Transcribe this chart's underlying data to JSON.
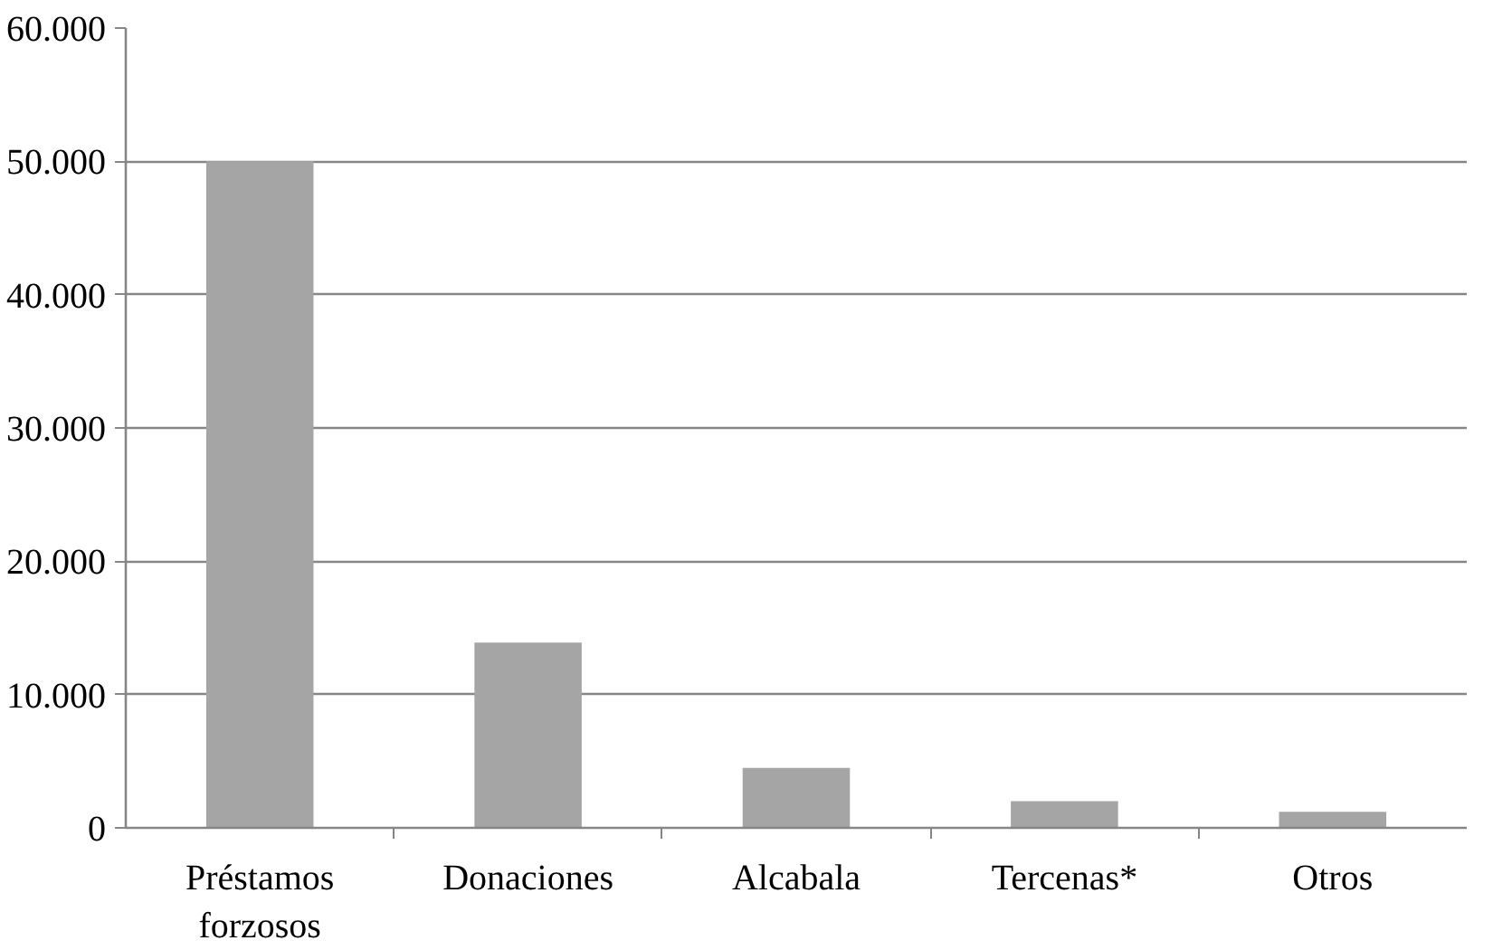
{
  "chart_data": {
    "type": "bar",
    "categories": [
      "Préstamos forzosos",
      "Donaciones",
      "Alcabala",
      "Tercenas*",
      "Otros"
    ],
    "values": [
      50000,
      13900,
      4500,
      2000,
      1200
    ],
    "color": "#a5a5a5",
    "ylim": [
      0,
      60000
    ],
    "yticks": [
      {
        "value": 0,
        "label": "0"
      },
      {
        "value": 10000,
        "label": "10.000"
      },
      {
        "value": 20000,
        "label": "20.000"
      },
      {
        "value": 30000,
        "label": "30.000"
      },
      {
        "value": 40000,
        "label": "40.000"
      },
      {
        "value": 50000,
        "label": "50.000"
      },
      {
        "value": 60000,
        "label": "60.000"
      }
    ],
    "grid": "y"
  }
}
